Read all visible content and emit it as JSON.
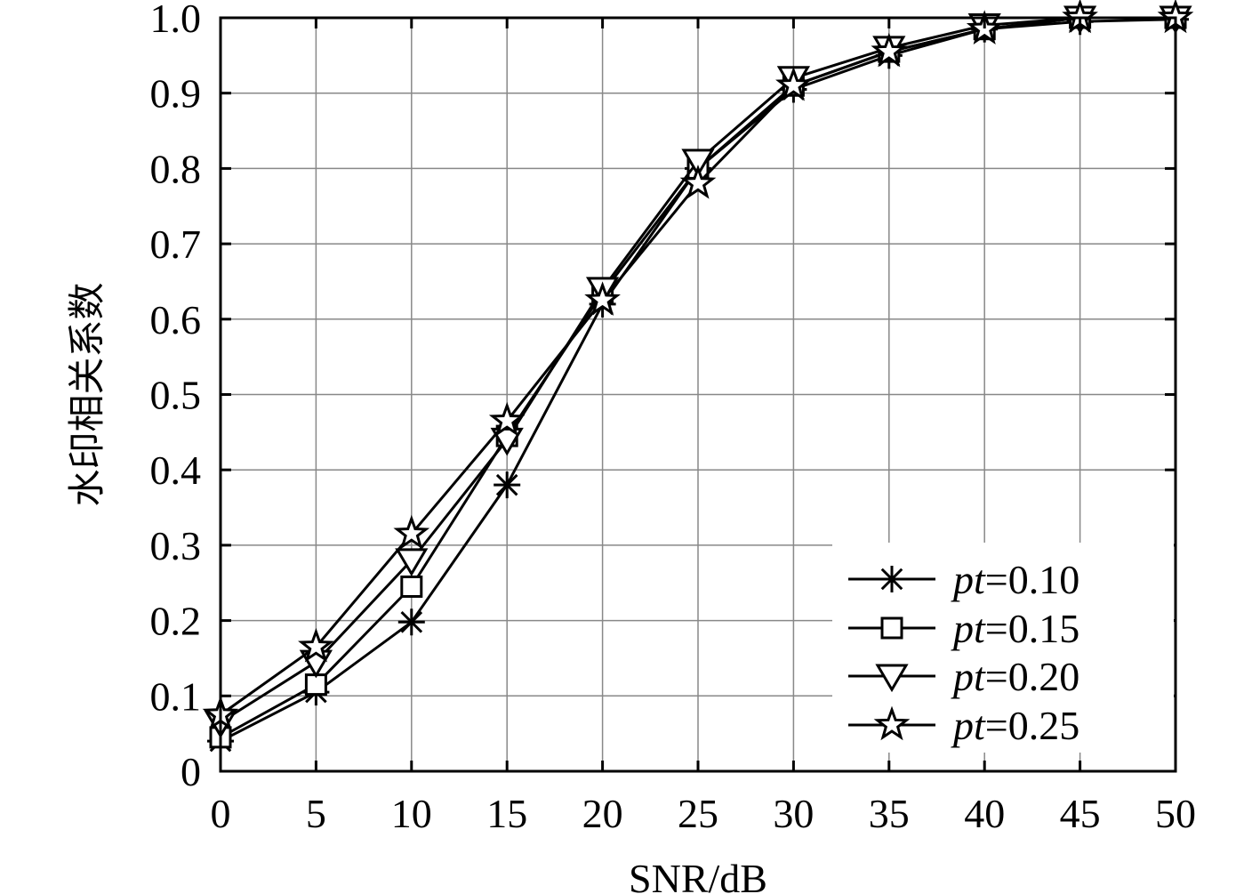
{
  "chart_data": {
    "type": "line",
    "xlabel": "SNR/dB",
    "ylabel": "水印相关系数",
    "xlim": [
      0,
      50
    ],
    "ylim": [
      0,
      1.0
    ],
    "xticks": [
      "0",
      "5",
      "10",
      "15",
      "20",
      "25",
      "30",
      "35",
      "40",
      "45",
      "50"
    ],
    "yticks": [
      "0",
      "0.1",
      "0.2",
      "0.3",
      "0.4",
      "0.5",
      "0.6",
      "0.7",
      "0.8",
      "0.9",
      "1.0"
    ],
    "grid": true,
    "legend_position": "bottom-right",
    "x": [
      0,
      5,
      10,
      15,
      20,
      25,
      30,
      35,
      40,
      45,
      50
    ],
    "series": [
      {
        "name": "pt=0.10",
        "name_italic": "pt",
        "name_rest": "=0.10",
        "marker": "asterisk",
        "values": [
          0.04,
          0.105,
          0.198,
          0.38,
          0.62,
          0.8,
          0.905,
          0.95,
          0.985,
          0.995,
          0.998
        ]
      },
      {
        "name": "pt=0.15",
        "name_italic": "pt",
        "name_rest": "=0.15",
        "marker": "square",
        "values": [
          0.045,
          0.115,
          0.245,
          0.445,
          0.635,
          0.8,
          0.91,
          0.955,
          0.985,
          1.0,
          1.0
        ]
      },
      {
        "name": "pt=0.20",
        "name_italic": "pt",
        "name_rest": "=0.20",
        "marker": "triangle-down",
        "values": [
          0.065,
          0.145,
          0.28,
          0.44,
          0.64,
          0.81,
          0.92,
          0.96,
          0.99,
          1.0,
          1.0
        ]
      },
      {
        "name": "pt=0.25",
        "name_italic": "pt",
        "name_rest": "=0.25",
        "marker": "star",
        "values": [
          0.075,
          0.165,
          0.315,
          0.465,
          0.625,
          0.78,
          0.91,
          0.955,
          0.985,
          1.0,
          1.0
        ]
      }
    ]
  }
}
